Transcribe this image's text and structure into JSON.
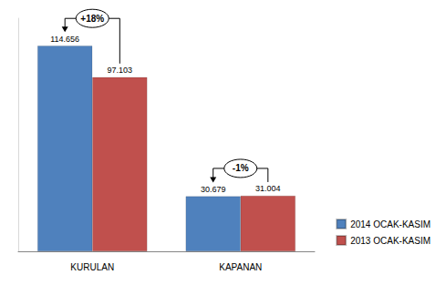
{
  "chart_data": {
    "type": "bar",
    "categories": [
      "KURULAN",
      "KAPANAN"
    ],
    "series": [
      {
        "name": "2014 OCAK-KASIM",
        "color": "#4f81bd",
        "values": [
          114656,
          30679
        ],
        "value_labels": [
          "114.656",
          "30.679"
        ]
      },
      {
        "name": "2013 OCAK-KASIM",
        "color": "#c0504d",
        "values": [
          97103,
          31004
        ],
        "value_labels": [
          "97.103",
          "31.004"
        ]
      }
    ],
    "ylim": [
      0,
      130000
    ],
    "data_labels": true,
    "tick_labels": "x",
    "grid": false,
    "legend": "bottom-right",
    "annotations": [
      {
        "text": "+18%",
        "category": "KURULAN"
      },
      {
        "text": "-1%",
        "category": "KAPANAN"
      }
    ]
  }
}
